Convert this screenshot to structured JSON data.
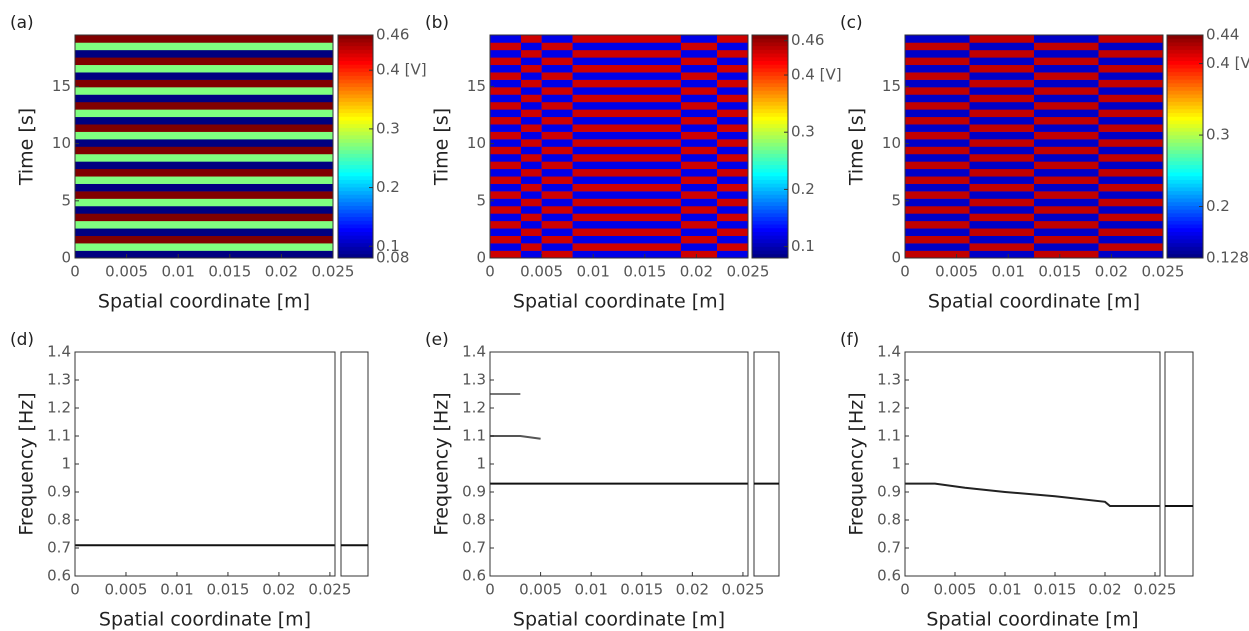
{
  "chart_data": [
    {
      "type": "heatmap",
      "panel_label": "(a)",
      "xlabel": "Spatial coordinate [m]",
      "ylabel": "Time [s]",
      "xlim": [
        0,
        0.025
      ],
      "xticks": [
        0,
        0.005,
        0.01,
        0.015,
        0.02,
        0.025
      ],
      "ylim": [
        0,
        19.5
      ],
      "yticks": [
        0,
        5,
        10,
        15
      ],
      "clim": [
        0.08,
        0.46
      ],
      "cticks": [
        0.08,
        0.1,
        0.2,
        0.3,
        {
          "value": 0.4,
          "label": "0.4 [V]"
        },
        0.46
      ],
      "x_edges": [
        0,
        0.025
      ],
      "y_edges": [
        0,
        0.65,
        1.3,
        1.95,
        2.6,
        3.25,
        3.9,
        4.55,
        5.2,
        5.85,
        6.5,
        7.15,
        7.8,
        8.45,
        9.1,
        9.75,
        10.4,
        11.05,
        11.7,
        12.35,
        13,
        13.65,
        14.3,
        14.95,
        15.6,
        16.25,
        16.9,
        17.55,
        18.2,
        18.85,
        19.5
      ],
      "z": [
        [
          0.08
        ],
        [
          0.27
        ],
        [
          0.46
        ],
        [
          0.08
        ],
        [
          0.27
        ],
        [
          0.46
        ],
        [
          0.08
        ],
        [
          0.27
        ],
        [
          0.46
        ],
        [
          0.08
        ],
        [
          0.27
        ],
        [
          0.46
        ],
        [
          0.08
        ],
        [
          0.27
        ],
        [
          0.46
        ],
        [
          0.08
        ],
        [
          0.27
        ],
        [
          0.46
        ],
        [
          0.08
        ],
        [
          0.27
        ],
        [
          0.46
        ],
        [
          0.08
        ],
        [
          0.27
        ],
        [
          0.46
        ],
        [
          0.08
        ],
        [
          0.27
        ],
        [
          0.46
        ],
        [
          0.08
        ],
        [
          0.27
        ],
        [
          0.46
        ]
      ]
    },
    {
      "type": "heatmap",
      "panel_label": "(b)",
      "xlabel": "Spatial coordinate [m]",
      "ylabel": "Time [s]",
      "xlim": [
        0,
        0.025
      ],
      "xticks": [
        0,
        0.005,
        0.01,
        0.015,
        0.02,
        0.025
      ],
      "ylim": [
        0,
        19.5
      ],
      "yticks": [
        0,
        5,
        10,
        15
      ],
      "clim": [
        0.08,
        0.47
      ],
      "cticks": [
        0.1,
        0.2,
        0.3,
        {
          "value": 0.4,
          "label": "0.4 [V]"
        },
        0.46
      ],
      "x_edges": [
        0,
        0.003,
        0.005,
        0.008,
        0.0185,
        0.022,
        0.025
      ],
      "y_edges": [
        0,
        0.65,
        1.3,
        1.95,
        2.6,
        3.25,
        3.9,
        4.55,
        5.2,
        5.85,
        6.5,
        7.15,
        7.8,
        8.45,
        9.1,
        9.75,
        10.4,
        11.05,
        11.7,
        12.35,
        13,
        13.65,
        14.3,
        14.95,
        15.6,
        16.25,
        16.9,
        17.55,
        18.2,
        18.85,
        19.5
      ],
      "z": [
        [
          0.44,
          0.12,
          0.44,
          0.12,
          0.44,
          0.12
        ],
        [
          0.12,
          0.44,
          0.12,
          0.44,
          0.12,
          0.44
        ],
        [
          0.44,
          0.12,
          0.44,
          0.12,
          0.44,
          0.12
        ],
        [
          0.12,
          0.44,
          0.12,
          0.44,
          0.12,
          0.44
        ],
        [
          0.44,
          0.12,
          0.44,
          0.12,
          0.44,
          0.12
        ],
        [
          0.12,
          0.44,
          0.12,
          0.44,
          0.12,
          0.44
        ],
        [
          0.44,
          0.12,
          0.44,
          0.12,
          0.44,
          0.12
        ],
        [
          0.12,
          0.44,
          0.12,
          0.44,
          0.12,
          0.44
        ],
        [
          0.44,
          0.12,
          0.44,
          0.12,
          0.44,
          0.12
        ],
        [
          0.12,
          0.44,
          0.12,
          0.44,
          0.12,
          0.44
        ],
        [
          0.44,
          0.12,
          0.44,
          0.12,
          0.44,
          0.12
        ],
        [
          0.12,
          0.44,
          0.12,
          0.44,
          0.12,
          0.44
        ],
        [
          0.44,
          0.12,
          0.44,
          0.12,
          0.44,
          0.12
        ],
        [
          0.12,
          0.44,
          0.12,
          0.44,
          0.12,
          0.44
        ],
        [
          0.44,
          0.12,
          0.44,
          0.12,
          0.44,
          0.12
        ],
        [
          0.12,
          0.44,
          0.12,
          0.44,
          0.12,
          0.44
        ],
        [
          0.44,
          0.12,
          0.44,
          0.12,
          0.44,
          0.12
        ],
        [
          0.12,
          0.44,
          0.12,
          0.44,
          0.12,
          0.44
        ],
        [
          0.44,
          0.12,
          0.44,
          0.12,
          0.44,
          0.12
        ],
        [
          0.12,
          0.44,
          0.12,
          0.44,
          0.12,
          0.44
        ],
        [
          0.44,
          0.12,
          0.44,
          0.12,
          0.44,
          0.12
        ],
        [
          0.12,
          0.44,
          0.12,
          0.44,
          0.12,
          0.44
        ],
        [
          0.44,
          0.12,
          0.44,
          0.12,
          0.44,
          0.12
        ],
        [
          0.12,
          0.44,
          0.12,
          0.44,
          0.12,
          0.44
        ],
        [
          0.44,
          0.12,
          0.44,
          0.12,
          0.44,
          0.12
        ],
        [
          0.12,
          0.44,
          0.12,
          0.44,
          0.12,
          0.44
        ],
        [
          0.44,
          0.12,
          0.44,
          0.12,
          0.44,
          0.12
        ],
        [
          0.12,
          0.44,
          0.12,
          0.44,
          0.12,
          0.44
        ],
        [
          0.44,
          0.12,
          0.44,
          0.12,
          0.44,
          0.12
        ],
        [
          0.12,
          0.44,
          0.12,
          0.44,
          0.12,
          0.44
        ]
      ]
    },
    {
      "type": "heatmap",
      "panel_label": "(c)",
      "xlabel": "Spatial coordinate [m]",
      "ylabel": "Time [s]",
      "xlim": [
        0,
        0.025
      ],
      "xticks": [
        0,
        0.005,
        0.01,
        0.015,
        0.02,
        0.025
      ],
      "ylim": [
        0,
        19.5
      ],
      "yticks": [
        0,
        5,
        10,
        15
      ],
      "clim": [
        0.128,
        0.44
      ],
      "cticks": [
        0.128,
        0.2,
        0.3,
        {
          "value": 0.4,
          "label": "0.4 [V]"
        },
        0.44
      ],
      "x_edges": [
        0,
        0.003125,
        0.00625,
        0.009375,
        0.0125,
        0.015625,
        0.01875,
        0.021875,
        0.025
      ],
      "y_edges": [
        0,
        0.65,
        1.3,
        1.95,
        2.6,
        3.25,
        3.9,
        4.55,
        5.2,
        5.85,
        6.5,
        7.15,
        7.8,
        8.45,
        9.1,
        9.75,
        10.4,
        11.05,
        11.7,
        12.35,
        13,
        13.65,
        14.3,
        14.95,
        15.6,
        16.25,
        16.9,
        17.55,
        18.2,
        18.85,
        19.5
      ],
      "z": [
        [
          0.42,
          0.42,
          0.15,
          0.15,
          0.42,
          0.42,
          0.15,
          0.15
        ],
        [
          0.15,
          0.15,
          0.42,
          0.42,
          0.15,
          0.15,
          0.42,
          0.42
        ],
        [
          0.42,
          0.42,
          0.15,
          0.15,
          0.42,
          0.42,
          0.15,
          0.15
        ],
        [
          0.15,
          0.15,
          0.42,
          0.42,
          0.15,
          0.15,
          0.42,
          0.42
        ],
        [
          0.42,
          0.42,
          0.15,
          0.15,
          0.42,
          0.42,
          0.15,
          0.15
        ],
        [
          0.15,
          0.15,
          0.42,
          0.42,
          0.15,
          0.15,
          0.42,
          0.42
        ],
        [
          0.42,
          0.42,
          0.15,
          0.15,
          0.42,
          0.42,
          0.15,
          0.15
        ],
        [
          0.15,
          0.15,
          0.42,
          0.42,
          0.15,
          0.15,
          0.42,
          0.42
        ],
        [
          0.42,
          0.42,
          0.15,
          0.15,
          0.42,
          0.42,
          0.15,
          0.15
        ],
        [
          0.15,
          0.15,
          0.42,
          0.42,
          0.15,
          0.15,
          0.42,
          0.42
        ],
        [
          0.42,
          0.42,
          0.15,
          0.15,
          0.42,
          0.42,
          0.15,
          0.15
        ],
        [
          0.15,
          0.15,
          0.42,
          0.42,
          0.15,
          0.15,
          0.42,
          0.42
        ],
        [
          0.42,
          0.42,
          0.15,
          0.15,
          0.42,
          0.42,
          0.15,
          0.15
        ],
        [
          0.15,
          0.15,
          0.42,
          0.42,
          0.15,
          0.15,
          0.42,
          0.42
        ],
        [
          0.42,
          0.42,
          0.15,
          0.15,
          0.42,
          0.42,
          0.15,
          0.15
        ],
        [
          0.15,
          0.15,
          0.42,
          0.42,
          0.15,
          0.15,
          0.42,
          0.42
        ],
        [
          0.42,
          0.42,
          0.15,
          0.15,
          0.42,
          0.42,
          0.15,
          0.15
        ],
        [
          0.15,
          0.15,
          0.42,
          0.42,
          0.15,
          0.15,
          0.42,
          0.42
        ],
        [
          0.42,
          0.42,
          0.15,
          0.15,
          0.42,
          0.42,
          0.15,
          0.15
        ],
        [
          0.15,
          0.15,
          0.42,
          0.42,
          0.15,
          0.15,
          0.42,
          0.42
        ],
        [
          0.42,
          0.42,
          0.15,
          0.15,
          0.42,
          0.42,
          0.15,
          0.15
        ],
        [
          0.15,
          0.15,
          0.42,
          0.42,
          0.15,
          0.15,
          0.42,
          0.42
        ],
        [
          0.42,
          0.42,
          0.15,
          0.15,
          0.42,
          0.42,
          0.15,
          0.15
        ],
        [
          0.15,
          0.15,
          0.42,
          0.42,
          0.15,
          0.15,
          0.42,
          0.42
        ],
        [
          0.42,
          0.42,
          0.15,
          0.15,
          0.42,
          0.42,
          0.15,
          0.15
        ],
        [
          0.15,
          0.15,
          0.42,
          0.42,
          0.15,
          0.15,
          0.42,
          0.42
        ],
        [
          0.42,
          0.42,
          0.15,
          0.15,
          0.42,
          0.42,
          0.15,
          0.15
        ],
        [
          0.15,
          0.15,
          0.42,
          0.42,
          0.15,
          0.15,
          0.42,
          0.42
        ],
        [
          0.42,
          0.42,
          0.15,
          0.15,
          0.42,
          0.42,
          0.15,
          0.15
        ],
        [
          0.15,
          0.15,
          0.42,
          0.42,
          0.15,
          0.15,
          0.42,
          0.42
        ]
      ]
    },
    {
      "type": "line",
      "panel_label": "(d)",
      "xlabel": "Spatial coordinate [m]",
      "ylabel": "Frequency [Hz]",
      "xlim": [
        0,
        0.0255
      ],
      "xticks": [
        0,
        0.005,
        0.01,
        0.015,
        0.02,
        0.025
      ],
      "ylim": [
        0.6,
        1.4
      ],
      "yticks": [
        0.6,
        0.7,
        0.8,
        0.9,
        1,
        1.1,
        1.2,
        1.3,
        1.4
      ],
      "lines": [
        {
          "color": "#111111",
          "x": [
            0,
            0.0255
          ],
          "y": [
            0.71,
            0.71
          ]
        }
      ],
      "spectrum_peak": 0.71
    },
    {
      "type": "line",
      "panel_label": "(e)",
      "xlabel": "Spatial coordinate [m]",
      "ylabel": "Frequency [Hz]",
      "xlim": [
        0,
        0.0255
      ],
      "xticks": [
        0,
        0.005,
        0.01,
        0.015,
        0.02,
        0.025
      ],
      "ylim": [
        0.6,
        1.4
      ],
      "yticks": [
        0.6,
        0.7,
        0.8,
        0.9,
        1,
        1.1,
        1.2,
        1.3,
        1.4
      ],
      "lines": [
        {
          "color": "#111111",
          "x": [
            0,
            0.0255
          ],
          "y": [
            0.93,
            0.93
          ]
        },
        {
          "color": "#777777",
          "x": [
            0,
            0.003
          ],
          "y": [
            1.25,
            1.25
          ]
        },
        {
          "color": "#555555",
          "x": [
            0,
            0.003,
            0.005
          ],
          "y": [
            1.1,
            1.1,
            1.09
          ]
        }
      ],
      "spectrum_peak": 0.93
    },
    {
      "type": "line",
      "panel_label": "(f)",
      "xlabel": "Spatial coordinate [m]",
      "ylabel": "Frequency [Hz]",
      "xlim": [
        0,
        0.0255
      ],
      "xticks": [
        0,
        0.005,
        0.01,
        0.015,
        0.02,
        0.025
      ],
      "ylim": [
        0.6,
        1.4
      ],
      "yticks": [
        0.6,
        0.7,
        0.8,
        0.9,
        1,
        1.1,
        1.2,
        1.3,
        1.4
      ],
      "lines": [
        {
          "color": "#222222",
          "x": [
            0,
            0.003,
            0.006,
            0.01,
            0.015,
            0.02,
            0.0205,
            0.0255
          ],
          "y": [
            0.93,
            0.93,
            0.915,
            0.9,
            0.885,
            0.865,
            0.85,
            0.85
          ]
        }
      ],
      "spectrum_peak": 0.85
    }
  ]
}
